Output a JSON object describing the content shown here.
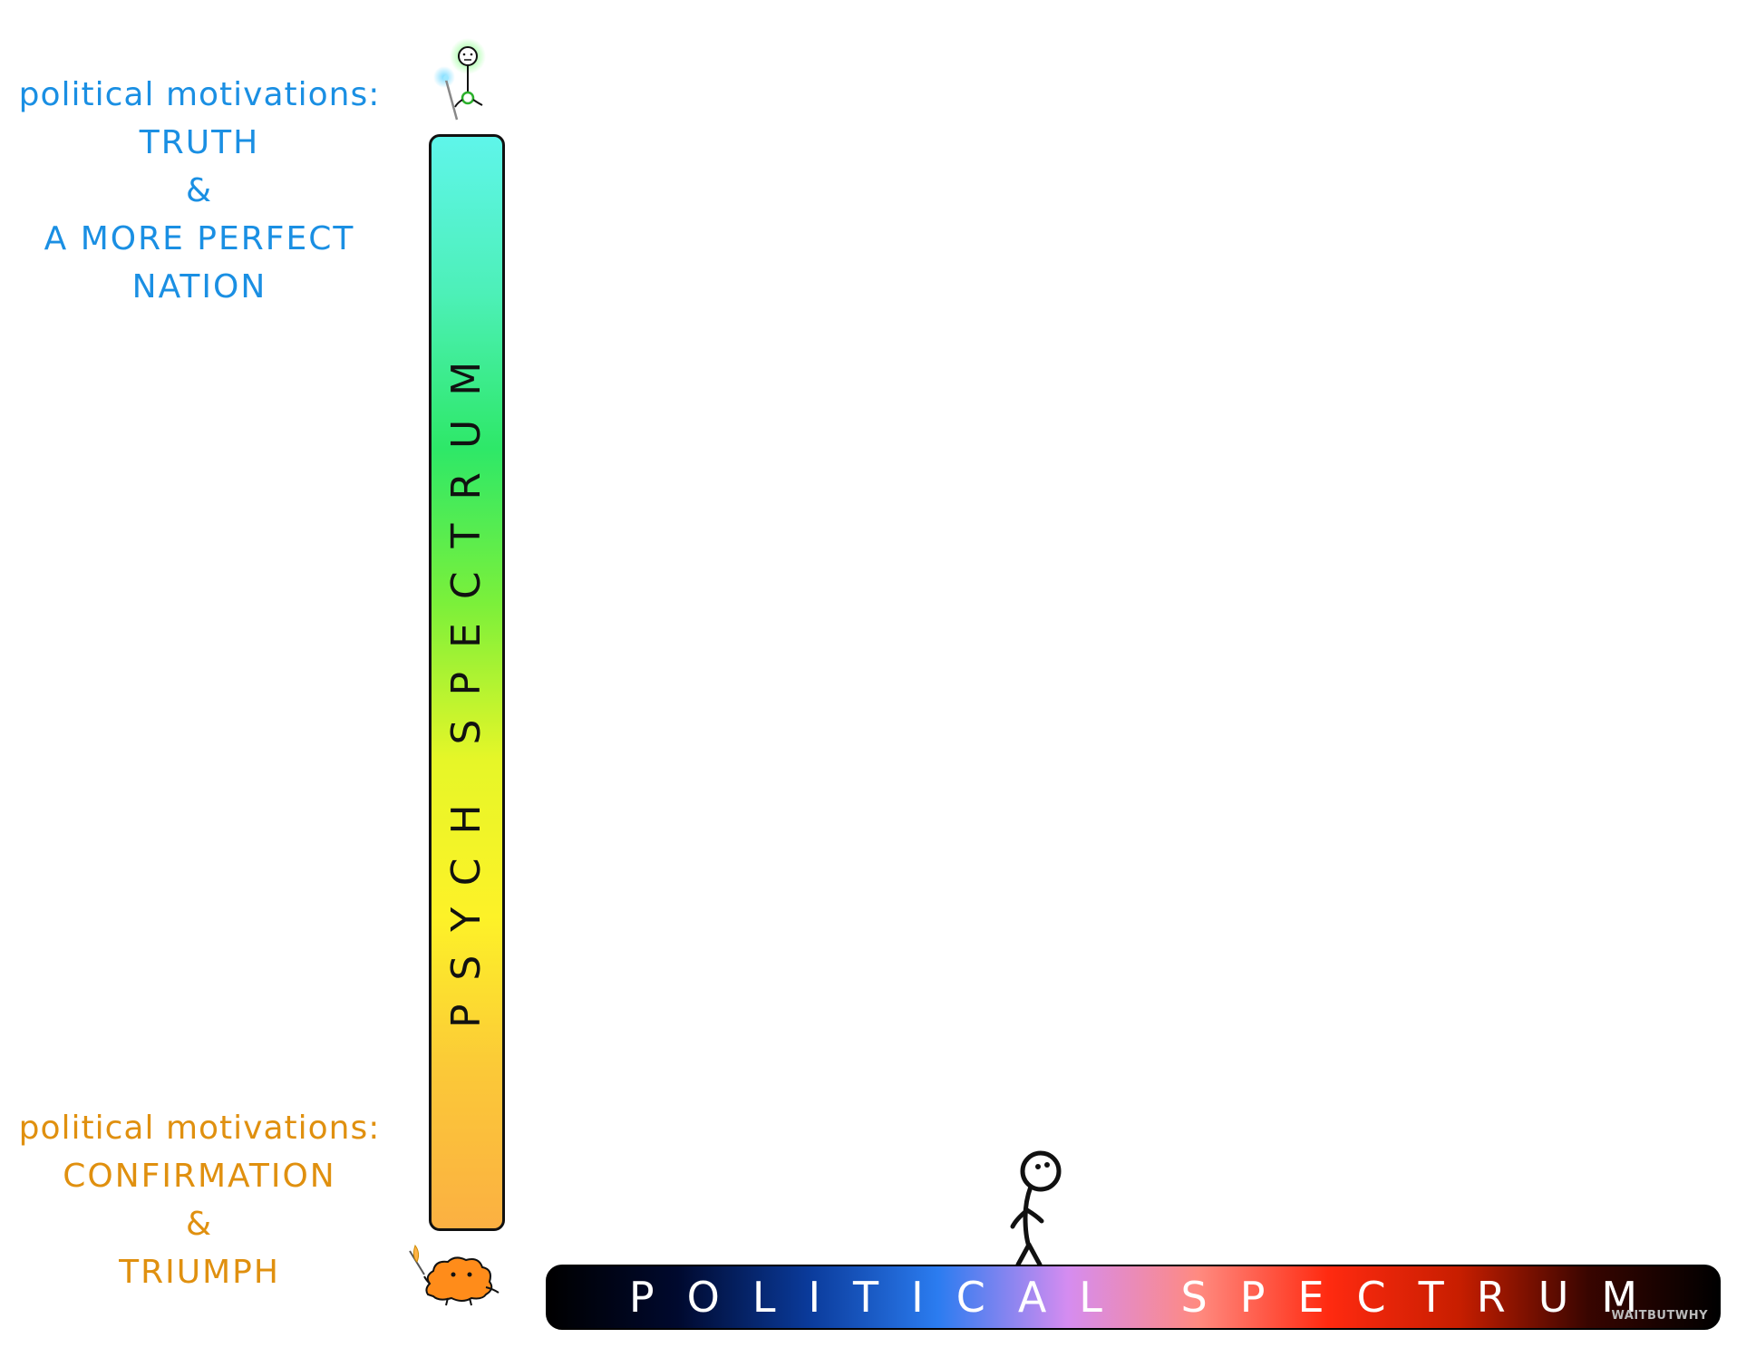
{
  "top_labels": {
    "heading": "political motivations:",
    "line1": "TRUTH",
    "line2": "&",
    "line3": "A MORE PERFECT",
    "line4": "NATION",
    "color": "#1a8fe3"
  },
  "bottom_labels": {
    "heading": "political motivations:",
    "line1": "CONFIRMATION",
    "line2": "&",
    "line3": "TRIUMPH",
    "color": "#e0900f"
  },
  "psych_spectrum": {
    "label": "PSYCH SPECTRUM",
    "gradient": [
      "#5ff5ea",
      "#4df0b8",
      "#2ee868",
      "#7cf03a",
      "#e6f628",
      "#fdf228",
      "#fbc838",
      "#fbb042"
    ]
  },
  "political_spectrum": {
    "label": "POLITICAL SPECTRUM",
    "gradient": [
      "#000000",
      "#00092e",
      "#0a3a9a",
      "#2b7cf0",
      "#d58cf0",
      "#ff8a80",
      "#ff2a10",
      "#c81e00",
      "#380500",
      "#000000"
    ],
    "watermark": "WAITBUTWHY"
  },
  "icons": {
    "top_figure": "enlightened-stick-figure-icon",
    "middle_figure": "stick-figure-icon",
    "bottom_creature": "primitive-mind-creature-icon"
  }
}
